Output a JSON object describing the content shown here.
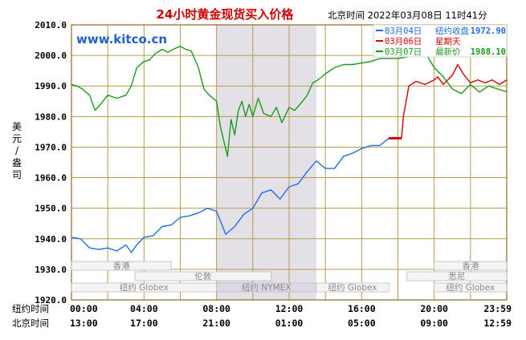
{
  "chart_data": {
    "type": "line",
    "title": "24小时黄金现货买入价格",
    "timestamp": "北京时间  2022年03月08日 11时41分",
    "watermark": "www.kitco.cn",
    "ylabel": "美元/盎司",
    "ylim": [
      1920,
      2010
    ],
    "yticks": [
      "2010.0",
      "2000.0",
      "1990.0",
      "1980.0",
      "1970.0",
      "1960.0",
      "1950.0",
      "1940.0",
      "1930.0",
      "1920.0"
    ],
    "x_row1_label": "纽约时间",
    "x_row2_label": "北京时间",
    "x_row1_ticks": [
      "00:00",
      "04:00",
      "08:00",
      "12:00",
      "16:00",
      "20:00",
      "23:59"
    ],
    "x_row2_ticks": [
      "13:00",
      "17:00",
      "21:00",
      "01:00",
      "05:00",
      "09:00",
      "12:59"
    ],
    "shaded_region_label": "纽约 NYMEX",
    "sessions": [
      {
        "label": "香港",
        "start": 0,
        "end": 5.5
      },
      {
        "label": "香港",
        "start": 20,
        "end": 24
      },
      {
        "label": "伦敦",
        "start": 3.5,
        "end": 11
      },
      {
        "label": "悉尼",
        "start": 18.5,
        "end": 24
      },
      {
        "label": "纽约 Globex",
        "start": 0,
        "end": 8
      },
      {
        "label": "纽约 NYMEX",
        "start": 8,
        "end": 13.5
      },
      {
        "label": "纽约 Globex",
        "start": 13.5,
        "end": 17.5
      },
      {
        "label": "纽约 Globex",
        "start": 20,
        "end": 24
      }
    ],
    "legend": [
      {
        "date": "03月04日",
        "desc": "纽约收盘",
        "value": "1972.90",
        "color": "#1f6fe0"
      },
      {
        "date": "03月06日",
        "desc": "星期天",
        "value": "",
        "color": "#d40000"
      },
      {
        "date": "03月07日",
        "desc": "最新价",
        "value": "1988.10",
        "color": "#1a9a1a"
      }
    ],
    "series": [
      {
        "name": "03月04日",
        "color": "#1f6fe0",
        "x": [
          0,
          0.5,
          1,
          1.5,
          2,
          2.5,
          3,
          3.3,
          3.6,
          4,
          4.5,
          5,
          5.5,
          6,
          6.5,
          7,
          7.5,
          8,
          8.5,
          9,
          9.5,
          10,
          10.5,
          11,
          11.5,
          12,
          12.5,
          13,
          13.5,
          14,
          14.5,
          15,
          15.5,
          16,
          16.5,
          17,
          17.5
        ],
        "y": [
          1940.5,
          1940,
          1937,
          1936.5,
          1937,
          1936,
          1938,
          1935.5,
          1938,
          1940.5,
          1941,
          1944,
          1944.5,
          1947,
          1947.5,
          1948.5,
          1950,
          1949,
          1941.5,
          1944,
          1948,
          1950,
          1955,
          1956,
          1953,
          1957,
          1958,
          1962,
          1965.5,
          1963,
          1963,
          1967,
          1968,
          1969.5,
          1970.5,
          1970.5,
          1972.9
        ]
      },
      {
        "name": "03月06日",
        "color": "#d40000",
        "x": [
          17.5,
          18.2,
          18.3,
          18.6,
          19,
          19.5,
          20,
          20.2,
          20.5,
          21,
          21.3,
          21.6,
          22,
          22.4,
          22.8,
          23.2,
          23.6,
          24
        ],
        "y": [
          1972.9,
          1972.9,
          1980,
          1990,
          1991.5,
          1990.5,
          1992,
          1993,
          1990.5,
          1993.5,
          1997,
          1994,
          1991,
          1992,
          1991,
          1992,
          1990.5,
          1992
        ]
      },
      {
        "name": "03月07日",
        "color": "#1a9a1a",
        "x": [
          0,
          0.3,
          0.6,
          1,
          1.3,
          1.6,
          2,
          2.5,
          3,
          3.3,
          3.6,
          4,
          4.3,
          4.6,
          5,
          5.3,
          5.6,
          6,
          6.3,
          6.6,
          7,
          7.3,
          7.6,
          8,
          8.2,
          8.4,
          8.6,
          8.8,
          9,
          9.2,
          9.4,
          9.6,
          9.8,
          10,
          10.3,
          10.6,
          11,
          11.3,
          11.6,
          12,
          12.3,
          12.6,
          13,
          13.3,
          13.6,
          14,
          14.5,
          15,
          15.5,
          16,
          16.5,
          17,
          17.5,
          18,
          18.5,
          19,
          19.5,
          20,
          20.5,
          21,
          21.5,
          22,
          22.5,
          23,
          23.5,
          24
        ],
        "y": [
          1990.5,
          1990,
          1989,
          1987,
          1982,
          1984,
          1987,
          1986,
          1987,
          1990,
          1996,
          1998,
          1998.5,
          2000.5,
          2002,
          2001,
          2002,
          2003,
          2002,
          2001.5,
          1996,
          1989,
          1987,
          1985,
          1977,
          1972,
          1967,
          1979,
          1974,
          1982,
          1985,
          1980,
          1984,
          1980,
          1986,
          1981,
          1980,
          1983,
          1978,
          1983,
          1982,
          1984,
          1987,
          1991,
          1992,
          1994,
          1996,
          1997,
          1997,
          1997.5,
          1998,
          1999,
          1999,
          1999,
          1999.5,
          2000,
          2001,
          1996,
          1993,
          1989,
          1987.5,
          1990.5,
          1988,
          1990,
          1989,
          1988.1
        ]
      }
    ]
  }
}
